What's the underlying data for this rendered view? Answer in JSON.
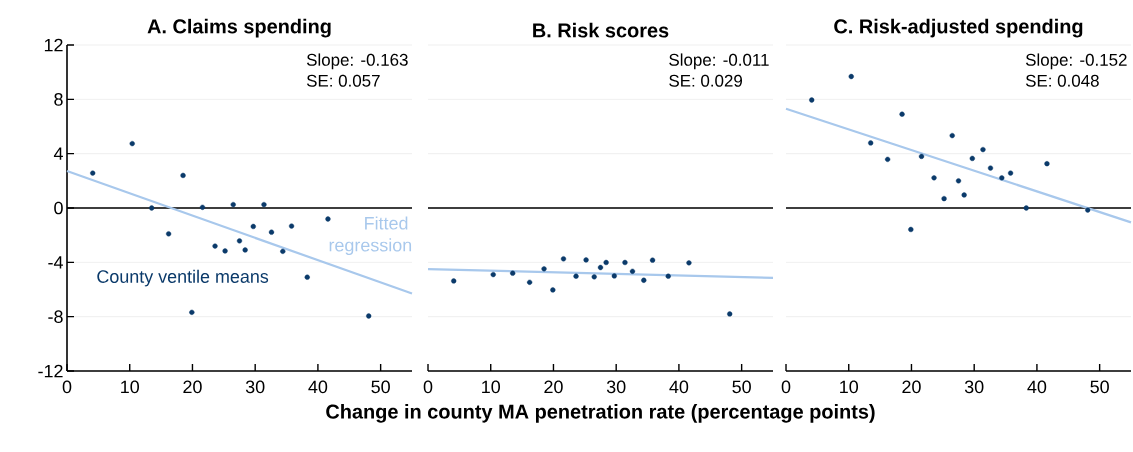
{
  "chart_data": [
    {
      "type": "scatter",
      "title": "A. Claims spending",
      "xlim": [
        0,
        55
      ],
      "xticks": [
        0,
        10,
        20,
        30,
        40,
        50
      ],
      "ylim": [
        -12,
        12
      ],
      "yticks": [
        -12,
        -8,
        -4,
        0,
        4,
        8,
        12
      ],
      "grid": "y",
      "ref_lines": [
        {
          "axis": "y",
          "value": 0,
          "color": "#000000"
        }
      ],
      "annotations": [
        "Slope: -0.163",
        "SE: 0.057"
      ],
      "series": [
        {
          "name": "County ventile means",
          "color": "#0b3a6a",
          "marker": "circle",
          "x": [
            4.1,
            10.4,
            13.5,
            16.2,
            18.5,
            19.9,
            21.6,
            23.6,
            25.2,
            26.5,
            27.5,
            28.4,
            29.7,
            31.4,
            32.6,
            34.4,
            35.8,
            38.3,
            41.6,
            48.1
          ],
          "values": [
            2.57,
            4.74,
            0,
            -1.9,
            2.4,
            -7.68,
            0.05,
            -2.8,
            -3.16,
            0.25,
            -2.42,
            -3.09,
            -1.36,
            0.25,
            -1.78,
            -3.19,
            -1.33,
            -5.09,
            -0.81,
            -7.95
          ]
        },
        {
          "type": "line",
          "name": "Fitted regression",
          "color": "#a8c8ec",
          "marker": "none",
          "x": [
            0,
            55
          ],
          "values": [
            2.72,
            -6.3
          ]
        }
      ]
    },
    {
      "type": "scatter",
      "title": "B. Risk scores",
      "xlabel": "Change in county MA penetration rate (percentage points)",
      "xlim": [
        0,
        55
      ],
      "xticks": [
        0,
        10,
        20,
        30,
        40,
        50
      ],
      "ylim": [
        -12,
        12
      ],
      "yticks": [
        -12,
        -8,
        -4,
        0,
        4,
        8,
        12
      ],
      "grid": "y",
      "tick_labels": "x",
      "ref_lines": [
        {
          "axis": "y",
          "value": 0,
          "color": "#000000"
        }
      ],
      "annotations": [
        "Slope: -0.011",
        "SE: 0.029"
      ],
      "series": [
        {
          "color": "#0b3a6a",
          "marker": "circle",
          "x": [
            4.1,
            10.4,
            13.5,
            16.2,
            18.5,
            19.9,
            21.6,
            23.6,
            25.2,
            26.5,
            27.5,
            28.4,
            29.7,
            31.4,
            32.6,
            34.4,
            35.8,
            38.3,
            41.6,
            48.1
          ],
          "values": [
            -5.37,
            -4.9,
            -4.8,
            -5.47,
            -4.48,
            -6.03,
            -3.74,
            -5.02,
            -3.82,
            -5.07,
            -4.38,
            -4.01,
            -5.0,
            -4.01,
            -4.66,
            -5.32,
            -3.84,
            -5.02,
            -4.04,
            -7.8
          ]
        },
        {
          "type": "line",
          "color": "#a8c8ec",
          "marker": "none",
          "x": [
            0,
            55
          ],
          "values": [
            -4.5,
            -5.15
          ]
        }
      ]
    },
    {
      "type": "scatter",
      "title": "C. Risk-adjusted spending",
      "xlim": [
        0,
        55
      ],
      "xticks": [
        0,
        10,
        20,
        30,
        40,
        50
      ],
      "ylim": [
        -12,
        12
      ],
      "yticks": [
        -12,
        -8,
        -4,
        0,
        4,
        8,
        12
      ],
      "grid": "y",
      "tick_labels": "x",
      "ref_lines": [
        {
          "axis": "y",
          "value": 0,
          "color": "#000000"
        }
      ],
      "annotations": [
        "Slope: -0.152",
        "SE: 0.048"
      ],
      "series": [
        {
          "color": "#0b3a6a",
          "marker": "circle",
          "x": [
            4.1,
            10.4,
            13.5,
            16.2,
            18.5,
            19.9,
            21.6,
            23.6,
            25.2,
            26.5,
            27.5,
            28.4,
            29.7,
            31.4,
            32.6,
            34.4,
            35.8,
            38.3,
            41.6,
            48.1
          ],
          "values": [
            7.95,
            9.68,
            4.79,
            3.58,
            6.91,
            -1.58,
            3.8,
            2.22,
            0.69,
            5.33,
            2.0,
            0.96,
            3.65,
            4.3,
            2.94,
            2.22,
            2.57,
            0,
            3.26,
            -0.15
          ]
        },
        {
          "type": "line",
          "color": "#a8c8ec",
          "marker": "none",
          "x": [
            0,
            55
          ],
          "values": [
            7.31,
            -1.06
          ]
        }
      ]
    }
  ]
}
